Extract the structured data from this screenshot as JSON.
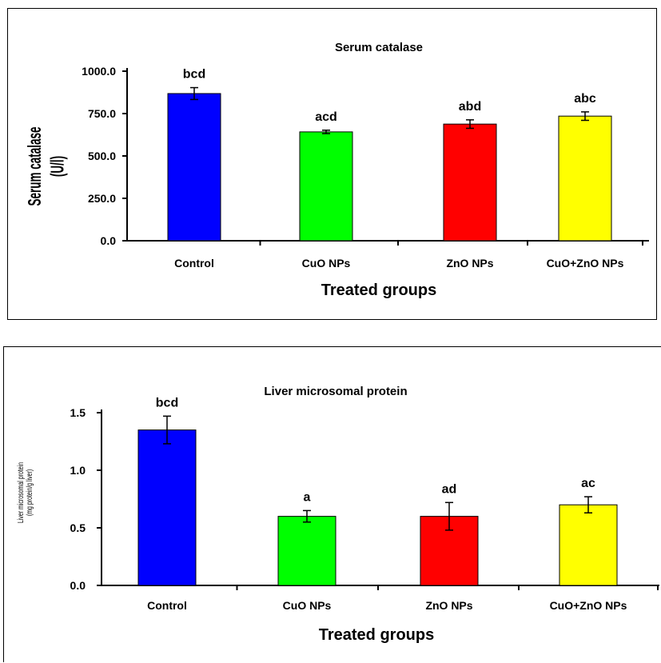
{
  "chart_data": [
    {
      "type": "bar",
      "title": "Serum catalase",
      "xlabel": "Treated groups",
      "ylabel": "Serum catalase",
      "ylabel_unit": "(U/l)",
      "categories": [
        "Control",
        "CuO NPs",
        "ZnO NPs",
        "CuO+ZnO NPs"
      ],
      "values": [
        868,
        642,
        688,
        735
      ],
      "errors": [
        35,
        10,
        25,
        25
      ],
      "significance": [
        "bcd",
        "acd",
        "abd",
        "abc"
      ],
      "colors": [
        "#0000ff",
        "#00ff00",
        "#ff0000",
        "#ffff00"
      ],
      "ylim": [
        0,
        1000
      ],
      "yticks": [
        0,
        250,
        500,
        750,
        1000
      ],
      "ytick_labels": [
        "0.0",
        "250.0",
        "500.0",
        "750.0",
        "1000.0"
      ],
      "grid": false,
      "legend": false
    },
    {
      "type": "bar",
      "title": "Liver microsomal protein",
      "xlabel": "Treated groups",
      "ylabel": "Liver microsomal protein",
      "ylabel_unit": "(mg protein/g liver)",
      "categories": [
        "Control",
        "CuO NPs",
        "ZnO NPs",
        "CuO+ZnO NPs"
      ],
      "values": [
        1.35,
        0.6,
        0.6,
        0.7
      ],
      "errors": [
        0.12,
        0.05,
        0.12,
        0.07
      ],
      "significance": [
        "bcd",
        "a",
        "ad",
        "ac"
      ],
      "colors": [
        "#0000ff",
        "#00ff00",
        "#ff0000",
        "#ffff00"
      ],
      "ylim": [
        0,
        1.5
      ],
      "yticks": [
        0,
        0.5,
        1.0,
        1.5
      ],
      "ytick_labels": [
        "0.0",
        "0.5",
        "1.0",
        "1.5"
      ],
      "grid": false,
      "legend": false
    }
  ]
}
